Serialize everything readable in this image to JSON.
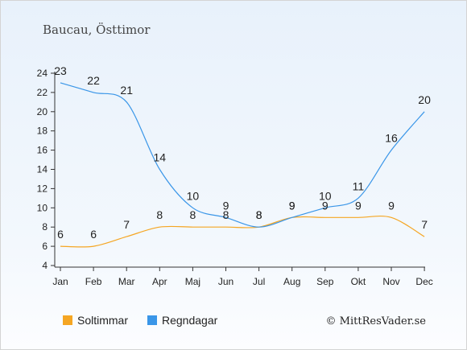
{
  "chart_data": {
    "type": "line",
    "title": "Baucau, Östtimor",
    "categories": [
      "Jan",
      "Feb",
      "Mar",
      "Apr",
      "Maj",
      "Jun",
      "Jul",
      "Aug",
      "Sep",
      "Okt",
      "Nov",
      "Dec"
    ],
    "series": [
      {
        "name": "Soltimmar",
        "color": "#f5a623",
        "values": [
          6,
          6,
          7,
          8,
          8,
          8,
          8,
          9,
          9,
          9,
          9,
          7
        ]
      },
      {
        "name": "Regndagar",
        "color": "#3a96e8",
        "values": [
          23,
          22,
          21,
          14,
          10,
          9,
          8,
          9,
          10,
          11,
          16,
          20
        ]
      }
    ],
    "yticks": [
      4,
      6,
      8,
      10,
      12,
      14,
      16,
      18,
      20,
      22,
      24
    ],
    "ylim": [
      4,
      24
    ],
    "xlabel": "",
    "ylabel": "",
    "grid": false,
    "legend_position": "bottom-left"
  },
  "credit": "© MittResVader.se"
}
